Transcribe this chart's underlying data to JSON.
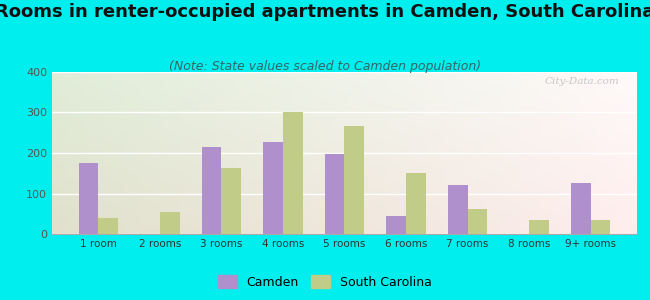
{
  "title": "Rooms in renter-occupied apartments in Camden, South Carolina",
  "subtitle": "(Note: State values scaled to Camden population)",
  "categories": [
    "1 room",
    "2 rooms",
    "3 rooms",
    "4 rooms",
    "5 rooms",
    "6 rooms",
    "7 rooms",
    "8 rooms",
    "9+ rooms"
  ],
  "camden_values": [
    175,
    0,
    215,
    228,
    197,
    45,
    122,
    0,
    125
  ],
  "sc_values": [
    40,
    55,
    163,
    302,
    267,
    150,
    62,
    35,
    35
  ],
  "camden_color": "#b090cc",
  "sc_color": "#c0cc88",
  "background_outer": "#00eeee",
  "ylim": [
    0,
    400
  ],
  "yticks": [
    0,
    100,
    200,
    300,
    400
  ],
  "watermark": "City-Data.com",
  "legend_camden": "Camden",
  "legend_sc": "South Carolina",
  "title_fontsize": 13,
  "subtitle_fontsize": 9,
  "bar_width": 0.32
}
